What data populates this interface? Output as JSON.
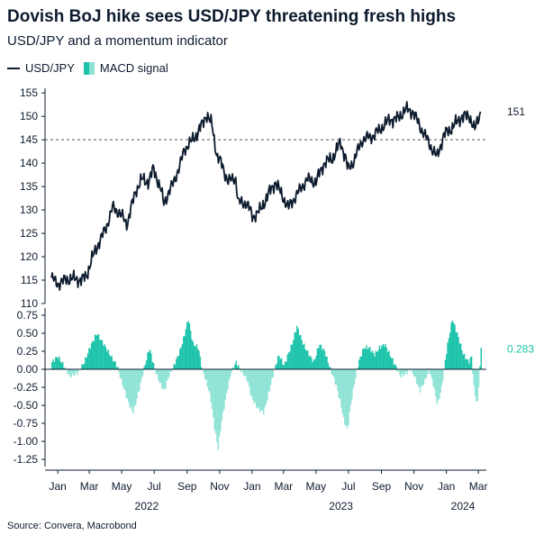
{
  "title": "Dovish BoJ hike sees USD/JPY threatening fresh highs",
  "subtitle": "USD/JPY and a momentum indicator",
  "source": "Source: Convera, Macrobond",
  "legend": [
    {
      "name": "USD/JPY",
      "color": "#0d1b2e"
    },
    {
      "name": "MACD signal",
      "color_pos": "#1cc3aa",
      "color_neg": "#8fe3d6"
    }
  ],
  "colors": {
    "price": "#0d1b2e",
    "macd_pos": "#1cc3aa",
    "macd_neg": "#8fe3d6",
    "axis": "#0d1b2e",
    "ref": "#555555"
  },
  "chart_data": [
    {
      "type": "line",
      "series": [
        {
          "name": "USD/JPY",
          "x": [
            "2022-01-03",
            "2022-01-15",
            "2022-02-01",
            "2022-02-15",
            "2022-03-01",
            "2022-03-10",
            "2022-03-20",
            "2022-03-31",
            "2022-04-15",
            "2022-04-28",
            "2022-05-10",
            "2022-05-25",
            "2022-06-10",
            "2022-06-22",
            "2022-07-05",
            "2022-07-14",
            "2022-07-28",
            "2022-08-02",
            "2022-08-15",
            "2022-08-31",
            "2022-09-10",
            "2022-09-22",
            "2022-10-05",
            "2022-10-14",
            "2022-10-21",
            "2022-11-01",
            "2022-11-10",
            "2022-11-20",
            "2022-12-01",
            "2022-12-15",
            "2022-12-20",
            "2023-01-05",
            "2023-01-16",
            "2023-01-31",
            "2023-02-15",
            "2023-02-28",
            "2023-03-08",
            "2023-03-24",
            "2023-04-10",
            "2023-04-28",
            "2023-05-15",
            "2023-05-30",
            "2023-06-15",
            "2023-06-30",
            "2023-07-10",
            "2023-07-14",
            "2023-07-25",
            "2023-08-10",
            "2023-08-30",
            "2023-09-15",
            "2023-09-30",
            "2023-10-15",
            "2023-10-31",
            "2023-11-13",
            "2023-11-28",
            "2023-12-10",
            "2023-12-28",
            "2024-01-10",
            "2024-01-25",
            "2024-02-13",
            "2024-02-28",
            "2024-03-08",
            "2024-03-19"
          ],
          "values": [
            115.5,
            114.2,
            115.2,
            115.3,
            115.0,
            116.0,
            119.5,
            122.5,
            126.0,
            130.5,
            129.5,
            127.0,
            134.0,
            136.5,
            136.0,
            139.0,
            134.0,
            131.5,
            134.5,
            139.0,
            143.0,
            144.5,
            146.5,
            148.5,
            150.5,
            148.0,
            141.5,
            139.5,
            136.0,
            137.0,
            131.5,
            131.5,
            128.5,
            130.0,
            133.5,
            136.0,
            134.0,
            130.5,
            133.5,
            136.5,
            136.0,
            140.0,
            141.0,
            144.5,
            141.0,
            138.5,
            140.5,
            145.0,
            145.8,
            147.5,
            149.3,
            149.5,
            151.5,
            151.0,
            147.5,
            145.0,
            141.2,
            146.0,
            147.5,
            150.0,
            150.0,
            147.0,
            151.0
          ]
        }
      ],
      "ylim": [
        110,
        156
      ],
      "yticks": [
        110,
        115,
        120,
        125,
        130,
        135,
        140,
        145,
        150,
        155
      ],
      "reference_line": 145,
      "end_label": "151"
    },
    {
      "type": "area",
      "series": [
        {
          "name": "MACD signal",
          "x": [
            "2022-01-03",
            "2022-01-14",
            "2022-01-25",
            "2022-02-05",
            "2022-02-20",
            "2022-03-05",
            "2022-03-15",
            "2022-03-28",
            "2022-04-10",
            "2022-04-22",
            "2022-05-05",
            "2022-05-15",
            "2022-05-28",
            "2022-06-05",
            "2022-06-15",
            "2022-06-28",
            "2022-07-05",
            "2022-07-15",
            "2022-07-25",
            "2022-08-02",
            "2022-08-10",
            "2022-08-20",
            "2022-08-31",
            "2022-09-08",
            "2022-09-16",
            "2022-09-25",
            "2022-10-05",
            "2022-10-12",
            "2022-10-21",
            "2022-10-28",
            "2022-11-05",
            "2022-11-11",
            "2022-11-18",
            "2022-11-28",
            "2022-12-05",
            "2022-12-15",
            "2022-12-22",
            "2023-01-05",
            "2023-01-13",
            "2023-01-25",
            "2023-02-05",
            "2023-02-15",
            "2023-02-25",
            "2023-03-05",
            "2023-03-15",
            "2023-03-22",
            "2023-03-30",
            "2023-04-08",
            "2023-04-20",
            "2023-05-01",
            "2023-05-10",
            "2023-05-20",
            "2023-05-30",
            "2023-06-10",
            "2023-06-20",
            "2023-06-30",
            "2023-07-05",
            "2023-07-12",
            "2023-07-18",
            "2023-07-25",
            "2023-08-02",
            "2023-08-12",
            "2023-08-22",
            "2023-09-01",
            "2023-09-10",
            "2023-09-20",
            "2023-09-30",
            "2023-10-10",
            "2023-10-20",
            "2023-10-31",
            "2023-11-08",
            "2023-11-15",
            "2023-11-25",
            "2023-12-05",
            "2023-12-12",
            "2023-12-20",
            "2023-12-28",
            "2024-01-05",
            "2024-01-15",
            "2024-01-25",
            "2024-02-05",
            "2024-02-15",
            "2024-02-25",
            "2024-03-01",
            "2024-03-06",
            "2024-03-12",
            "2024-03-19"
          ],
          "values": [
            0.1,
            0.18,
            0.05,
            -0.1,
            -0.05,
            0.1,
            0.3,
            0.5,
            0.35,
            0.2,
            0.05,
            -0.2,
            -0.5,
            -0.6,
            -0.3,
            0.1,
            0.3,
            0.0,
            -0.2,
            -0.3,
            -0.1,
            0.05,
            0.25,
            0.45,
            0.7,
            0.35,
            0.3,
            0.0,
            -0.2,
            -0.4,
            -0.85,
            -1.1,
            -0.7,
            -0.3,
            -0.05,
            0.1,
            0.0,
            -0.15,
            -0.4,
            -0.55,
            -0.6,
            -0.3,
            0.0,
            0.2,
            0.05,
            0.2,
            0.35,
            0.6,
            0.35,
            0.2,
            0.1,
            0.35,
            0.25,
            0.0,
            -0.2,
            -0.5,
            -0.7,
            -0.85,
            -0.5,
            -0.2,
            0.1,
            0.3,
            0.3,
            0.2,
            0.3,
            0.35,
            0.2,
            0.05,
            -0.1,
            -0.05,
            0.0,
            -0.1,
            -0.3,
            -0.15,
            0.0,
            -0.2,
            -0.5,
            -0.25,
            0.3,
            0.7,
            0.45,
            0.2,
            0.1,
            0.18,
            -0.3,
            -0.5,
            0.283
          ]
        }
      ],
      "ylim": [
        -1.35,
        0.85
      ],
      "yticks": [
        -1.25,
        -1.0,
        -0.75,
        -0.5,
        -0.25,
        0.0,
        0.25,
        0.5,
        0.75
      ],
      "ytick_labels": [
        "-1.25",
        "-1.00",
        "-0.75",
        "-0.50",
        "-0.25",
        "0.00",
        "0.25",
        "0.50",
        "0.75"
      ],
      "end_label": "0.283"
    }
  ],
  "x_axis": {
    "domain": [
      "2021-12-22",
      "2024-03-30"
    ],
    "month_ticks": [
      {
        "date": "2022-01-15",
        "label": "Jan"
      },
      {
        "date": "2022-03-15",
        "label": "Mar"
      },
      {
        "date": "2022-05-15",
        "label": "May"
      },
      {
        "date": "2022-07-15",
        "label": "Jul"
      },
      {
        "date": "2022-09-15",
        "label": "Sep"
      },
      {
        "date": "2022-11-15",
        "label": "Nov"
      },
      {
        "date": "2023-01-15",
        "label": "Jan"
      },
      {
        "date": "2023-03-15",
        "label": "Mar"
      },
      {
        "date": "2023-05-15",
        "label": "May"
      },
      {
        "date": "2023-07-15",
        "label": "Jul"
      },
      {
        "date": "2023-09-15",
        "label": "Sep"
      },
      {
        "date": "2023-11-15",
        "label": "Nov"
      },
      {
        "date": "2024-01-15",
        "label": "Jan"
      },
      {
        "date": "2024-03-15",
        "label": "Mar"
      }
    ],
    "year_labels": [
      {
        "date": "2022-07-01",
        "label": "2022"
      },
      {
        "date": "2023-07-01",
        "label": "2023"
      },
      {
        "date": "2024-02-15",
        "label": "2024"
      }
    ]
  }
}
